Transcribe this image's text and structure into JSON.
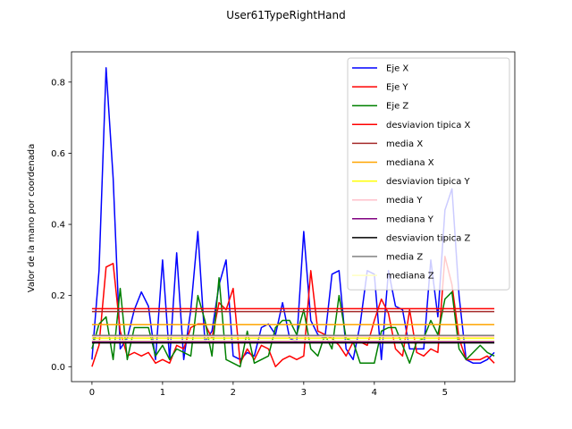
{
  "chart_data": {
    "type": "line",
    "title": "User61TypeRightHand",
    "xlabel": "",
    "ylabel": "Valor de la mano por coordenada",
    "xlim": [
      -0.29,
      5.99
    ],
    "ylim": [
      -0.042,
      0.885
    ],
    "xticks": [
      0,
      1,
      2,
      3,
      4,
      5
    ],
    "yticks": [
      0.0,
      0.2,
      0.4,
      0.6,
      0.8
    ],
    "xtick_labels": [
      "0",
      "1",
      "2",
      "3",
      "4",
      "5"
    ],
    "ytick_labels": [
      "0.0",
      "0.2",
      "0.4",
      "0.6",
      "0.8"
    ],
    "legend_position": "upper right",
    "grid": false,
    "x": [
      0.0,
      0.1,
      0.2,
      0.3,
      0.4,
      0.5,
      0.6,
      0.7,
      0.8,
      0.9,
      1.0,
      1.1,
      1.2,
      1.3,
      1.4,
      1.5,
      1.6,
      1.7,
      1.8,
      1.9,
      2.0,
      2.1,
      2.2,
      2.3,
      2.4,
      2.5,
      2.6,
      2.7,
      2.8,
      2.9,
      3.0,
      3.1,
      3.2,
      3.3,
      3.4,
      3.5,
      3.6,
      3.7,
      3.8,
      3.9,
      4.0,
      4.1,
      4.2,
      4.3,
      4.4,
      4.5,
      4.6,
      4.7,
      4.8,
      4.9,
      5.0,
      5.1,
      5.2,
      5.3,
      5.4,
      5.5,
      5.6,
      5.7
    ],
    "series": [
      {
        "name": "Eje X",
        "color": "#0000ff",
        "kind": "line",
        "values": [
          0.02,
          0.27,
          0.84,
          0.53,
          0.05,
          0.08,
          0.16,
          0.21,
          0.17,
          0.02,
          0.3,
          0.02,
          0.32,
          0.02,
          0.16,
          0.38,
          0.07,
          0.1,
          0.23,
          0.3,
          0.03,
          0.02,
          0.04,
          0.03,
          0.11,
          0.12,
          0.09,
          0.18,
          0.08,
          0.07,
          0.38,
          0.13,
          0.09,
          0.08,
          0.26,
          0.27,
          0.05,
          0.02,
          0.12,
          0.27,
          0.26,
          0.02,
          0.27,
          0.17,
          0.16,
          0.05,
          0.05,
          0.05,
          0.3,
          0.14,
          0.44,
          0.5,
          0.2,
          0.02,
          0.01,
          0.01,
          0.02,
          0.04
        ]
      },
      {
        "name": "Eje Y",
        "color": "#ff0000",
        "kind": "line",
        "values": [
          0.0,
          0.06,
          0.28,
          0.29,
          0.1,
          0.03,
          0.04,
          0.03,
          0.04,
          0.01,
          0.02,
          0.01,
          0.06,
          0.05,
          0.11,
          0.12,
          0.12,
          0.08,
          0.18,
          0.16,
          0.22,
          0.01,
          0.05,
          0.02,
          0.06,
          0.05,
          0.0,
          0.02,
          0.03,
          0.02,
          0.03,
          0.27,
          0.1,
          0.09,
          0.08,
          0.06,
          0.03,
          0.07,
          0.07,
          0.06,
          0.13,
          0.19,
          0.15,
          0.05,
          0.03,
          0.16,
          0.04,
          0.03,
          0.05,
          0.04,
          0.31,
          0.23,
          0.08,
          0.02,
          0.02,
          0.02,
          0.03,
          0.01
        ]
      },
      {
        "name": "Eje Z",
        "color": "#008000",
        "kind": "line",
        "values": [
          0.05,
          0.12,
          0.14,
          0.02,
          0.22,
          0.02,
          0.11,
          0.11,
          0.11,
          0.03,
          0.06,
          0.02,
          0.05,
          0.04,
          0.03,
          0.2,
          0.13,
          0.03,
          0.25,
          0.02,
          0.01,
          0.0,
          0.1,
          0.01,
          0.02,
          0.03,
          0.11,
          0.13,
          0.13,
          0.09,
          0.16,
          0.05,
          0.03,
          0.09,
          0.05,
          0.2,
          0.08,
          0.07,
          0.01,
          0.01,
          0.01,
          0.1,
          0.11,
          0.11,
          0.06,
          0.01,
          0.07,
          0.08,
          0.13,
          0.09,
          0.19,
          0.21,
          0.05,
          0.02,
          0.04,
          0.06,
          0.04,
          0.03
        ]
      },
      {
        "name": "desviavion tipica X",
        "color": "#ff0000",
        "kind": "hline",
        "value": 0.163
      },
      {
        "name": "media X",
        "color": "#a52a2a",
        "kind": "hline",
        "value": 0.155
      },
      {
        "name": "mediana X",
        "color": "#ffa500",
        "kind": "hline",
        "value": 0.118
      },
      {
        "name": "desviavion tipica Y",
        "color": "#ffff00",
        "kind": "hline",
        "value": 0.08
      },
      {
        "name": "media Y",
        "color": "#ffc0cb",
        "kind": "hline",
        "value": 0.085
      },
      {
        "name": "mediana Y",
        "color": "#800080",
        "kind": "hline",
        "value": 0.07
      },
      {
        "name": "desviavion tipica Z",
        "color": "#000000",
        "kind": "hline",
        "value": 0.067
      },
      {
        "name": "media Z",
        "color": "#808080",
        "kind": "hline",
        "value": 0.088
      },
      {
        "name": "mediana Z",
        "color": "#ffffc0",
        "kind": "hline",
        "value": 0.074
      }
    ]
  }
}
